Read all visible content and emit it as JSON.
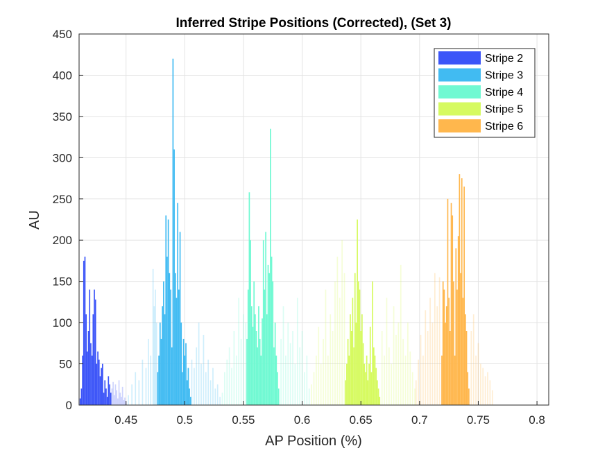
{
  "chart_data": {
    "type": "bar",
    "title": "Inferred Stripe Positions (Corrected),  (Set 3)",
    "xlabel": "AP Position (%)",
    "ylabel": "AU",
    "xlim": [
      0.41,
      0.81
    ],
    "ylim": [
      0,
      450
    ],
    "xticks": [
      0.45,
      0.5,
      0.55,
      0.6,
      0.65,
      0.7,
      0.75,
      0.8
    ],
    "xtick_labels": [
      "0.45",
      "0.5",
      "0.55",
      "0.6",
      "0.65",
      "0.7",
      "0.75",
      "0.8"
    ],
    "yticks": [
      0,
      50,
      100,
      150,
      200,
      250,
      300,
      350,
      400,
      450
    ],
    "ytick_labels": [
      "0",
      "50",
      "100",
      "150",
      "200",
      "250",
      "300",
      "350",
      "400",
      "450"
    ],
    "grid": true,
    "legend_position": "top-right",
    "bin_width": 0.001,
    "series": [
      {
        "name": "Stripe 2",
        "color": "#3c55f8",
        "x": [
          0.411,
          0.412,
          0.413,
          0.414,
          0.415,
          0.416,
          0.417,
          0.418,
          0.419,
          0.42,
          0.421,
          0.422,
          0.423,
          0.424,
          0.425,
          0.426,
          0.427,
          0.428,
          0.429,
          0.43,
          0.431,
          0.432,
          0.433,
          0.434,
          0.435,
          0.436,
          0.437
        ],
        "values": [
          8,
          20,
          60,
          175,
          180,
          110,
          65,
          90,
          140,
          75,
          60,
          110,
          140,
          128,
          50,
          65,
          55,
          35,
          45,
          50,
          15,
          30,
          20,
          10,
          35,
          25,
          15
        ],
        "faded_x": [
          0.438,
          0.439,
          0.44,
          0.441,
          0.442,
          0.443,
          0.444,
          0.445,
          0.446,
          0.447,
          0.448,
          0.449,
          0.45
        ],
        "faded_values": [
          20,
          28,
          12,
          25,
          18,
          8,
          30,
          15,
          10,
          22,
          6,
          9,
          4
        ]
      },
      {
        "name": "Stripe 3",
        "color": "#41bbf2",
        "x": [
          0.477,
          0.478,
          0.479,
          0.48,
          0.481,
          0.482,
          0.483,
          0.484,
          0.485,
          0.486,
          0.487,
          0.488,
          0.489,
          0.49,
          0.491,
          0.492,
          0.493,
          0.494,
          0.495,
          0.496,
          0.497,
          0.498,
          0.499,
          0.5,
          0.501,
          0.502,
          0.503,
          0.504,
          0.505
        ],
        "values": [
          40,
          60,
          100,
          80,
          120,
          150,
          110,
          230,
          180,
          225,
          160,
          140,
          70,
          420,
          310,
          160,
          130,
          245,
          140,
          210,
          100,
          40,
          80,
          60,
          75,
          30,
          45,
          20,
          10
        ],
        "faded_x": [
          0.452,
          0.455,
          0.458,
          0.461,
          0.464,
          0.467,
          0.469,
          0.471,
          0.473,
          0.474,
          0.475,
          0.476,
          0.506,
          0.508,
          0.51,
          0.512,
          0.514,
          0.516,
          0.518,
          0.52,
          0.522,
          0.524,
          0.526,
          0.528,
          0.53
        ],
        "faded_values": [
          12,
          25,
          40,
          30,
          55,
          45,
          80,
          60,
          165,
          120,
          140,
          100,
          55,
          45,
          70,
          100,
          50,
          85,
          40,
          55,
          30,
          45,
          20,
          25,
          10
        ]
      },
      {
        "name": "Stripe 4",
        "color": "#70f9d2",
        "x": [
          0.553,
          0.554,
          0.555,
          0.556,
          0.557,
          0.558,
          0.559,
          0.56,
          0.561,
          0.562,
          0.563,
          0.564,
          0.565,
          0.566,
          0.567,
          0.568,
          0.569,
          0.57,
          0.571,
          0.572,
          0.573,
          0.574,
          0.575,
          0.576,
          0.577,
          0.578,
          0.579,
          0.58
        ],
        "values": [
          80,
          140,
          258,
          200,
          120,
          95,
          150,
          110,
          90,
          70,
          120,
          80,
          60,
          105,
          200,
          140,
          210,
          110,
          170,
          160,
          335,
          180,
          150,
          70,
          100,
          60,
          40,
          20
        ],
        "faded_x": [
          0.532,
          0.534,
          0.536,
          0.538,
          0.54,
          0.542,
          0.544,
          0.546,
          0.548,
          0.55,
          0.552,
          0.582,
          0.584,
          0.586,
          0.588,
          0.59,
          0.592,
          0.594,
          0.596,
          0.598,
          0.6,
          0.602,
          0.604,
          0.606
        ],
        "faded_values": [
          15,
          40,
          55,
          70,
          45,
          90,
          60,
          130,
          80,
          110,
          100,
          80,
          120,
          60,
          100,
          75,
          90,
          50,
          130,
          70,
          90,
          40,
          60,
          20
        ]
      },
      {
        "name": "Stripe 5",
        "color": "#d6fa60",
        "x": [
          0.637,
          0.638,
          0.639,
          0.64,
          0.641,
          0.642,
          0.643,
          0.644,
          0.645,
          0.646,
          0.647,
          0.648,
          0.649,
          0.65,
          0.651,
          0.652,
          0.653,
          0.654,
          0.655,
          0.656,
          0.657,
          0.658,
          0.659,
          0.66,
          0.661,
          0.662,
          0.663,
          0.664,
          0.665,
          0.666
        ],
        "values": [
          30,
          50,
          80,
          60,
          110,
          90,
          130,
          70,
          160,
          100,
          225,
          150,
          140,
          90,
          110,
          75,
          50,
          40,
          60,
          30,
          50,
          95,
          40,
          150,
          70,
          60,
          45,
          30,
          20,
          10
        ],
        "faded_x": [
          0.608,
          0.61,
          0.612,
          0.614,
          0.616,
          0.618,
          0.62,
          0.622,
          0.624,
          0.626,
          0.628,
          0.63,
          0.632,
          0.634,
          0.636,
          0.668,
          0.67,
          0.672,
          0.674,
          0.676,
          0.678,
          0.68,
          0.682,
          0.684,
          0.686,
          0.688,
          0.69,
          0.692,
          0.694,
          0.696
        ],
        "faded_values": [
          25,
          40,
          60,
          95,
          50,
          80,
          140,
          60,
          110,
          90,
          150,
          180,
          130,
          200,
          160,
          90,
          60,
          130,
          70,
          50,
          120,
          85,
          100,
          170,
          80,
          60,
          100,
          65,
          40,
          20
        ]
      },
      {
        "name": "Stripe 6",
        "color": "#ffb74d",
        "x": [
          0.719,
          0.72,
          0.721,
          0.722,
          0.723,
          0.724,
          0.725,
          0.726,
          0.727,
          0.728,
          0.729,
          0.73,
          0.731,
          0.732,
          0.733,
          0.734,
          0.735,
          0.736,
          0.737,
          0.738,
          0.739,
          0.74,
          0.741,
          0.742
        ],
        "values": [
          60,
          150,
          140,
          100,
          120,
          250,
          130,
          90,
          245,
          230,
          150,
          60,
          190,
          140,
          205,
          280,
          160,
          275,
          130,
          265,
          110,
          90,
          40,
          20
        ],
        "faded_x": [
          0.697,
          0.699,
          0.701,
          0.703,
          0.705,
          0.707,
          0.709,
          0.711,
          0.713,
          0.715,
          0.717,
          0.744,
          0.746,
          0.748,
          0.75,
          0.752,
          0.754,
          0.756,
          0.758,
          0.76,
          0.762
        ],
        "faded_values": [
          30,
          55,
          85,
          60,
          115,
          90,
          130,
          100,
          160,
          120,
          155,
          90,
          110,
          60,
          75,
          50,
          45,
          35,
          40,
          30,
          18
        ]
      }
    ]
  }
}
